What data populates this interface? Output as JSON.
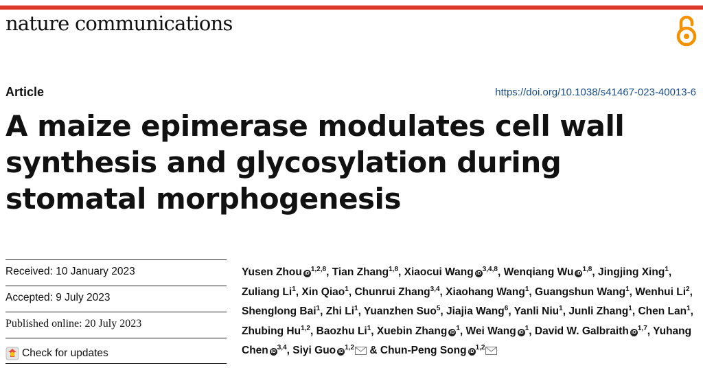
{
  "header": {
    "journal": "nature communications",
    "open_access_icon": "open-access-lock-icon",
    "accent_color": "#e0392b"
  },
  "article": {
    "type": "Article",
    "doi": "https://doi.org/10.1038/s41467-023-40013-6",
    "title": "A maize epimerase modulates cell wall synthesis and glycosylation during stomatal morphogenesis"
  },
  "dates": {
    "received": "Received: 10 January 2023",
    "accepted": "Accepted: 9 July 2023",
    "published": "Published online: 20 July 2023",
    "check_updates": "Check for updates"
  },
  "authors": [
    {
      "name": "Yusen Zhou",
      "orcid": true,
      "sup": "1,2,8",
      "sep": ", "
    },
    {
      "name": "Tian Zhang",
      "orcid": false,
      "sup": "1,8",
      "sep": ", "
    },
    {
      "name": "Xiaocui Wang",
      "orcid": true,
      "sup": "3,4,8",
      "sep": ", "
    },
    {
      "name": "Wenqiang Wu",
      "orcid": true,
      "sup": "1,8",
      "sep": ", "
    },
    {
      "name": "Jingjing Xing",
      "orcid": false,
      "sup": "1",
      "sep": ", "
    },
    {
      "name": "Zuliang Li",
      "orcid": false,
      "sup": "1",
      "sep": ", "
    },
    {
      "name": "Xin Qiao",
      "orcid": false,
      "sup": "1",
      "sep": ", "
    },
    {
      "name": "Chunrui Zhang",
      "orcid": false,
      "sup": "3,4",
      "sep": ", "
    },
    {
      "name": "Xiaohang Wang",
      "orcid": false,
      "sup": "1",
      "sep": ", "
    },
    {
      "name": "Guangshun Wang",
      "orcid": false,
      "sup": "1",
      "sep": ", "
    },
    {
      "name": "Wenhui Li",
      "orcid": false,
      "sup": "2",
      "sep": ", "
    },
    {
      "name": "Shenglong Bai",
      "orcid": false,
      "sup": "1",
      "sep": ", "
    },
    {
      "name": "Zhi Li",
      "orcid": false,
      "sup": "1",
      "sep": ", "
    },
    {
      "name": "Yuanzhen Suo",
      "orcid": false,
      "sup": "5",
      "sep": ", "
    },
    {
      "name": "Jiajia Wang",
      "orcid": false,
      "sup": "6",
      "sep": ", "
    },
    {
      "name": "Yanli Niu",
      "orcid": false,
      "sup": "1",
      "sep": ", "
    },
    {
      "name": "Junli Zhang",
      "orcid": false,
      "sup": "1",
      "sep": ", "
    },
    {
      "name": "Chen Lan",
      "orcid": false,
      "sup": "1",
      "sep": ", "
    },
    {
      "name": "Zhubing Hu",
      "orcid": false,
      "sup": "1,2",
      "sep": ", "
    },
    {
      "name": "Baozhu Li",
      "orcid": false,
      "sup": "1",
      "sep": ", "
    },
    {
      "name": "Xuebin Zhang",
      "orcid": true,
      "sup": "1",
      "sep": ", "
    },
    {
      "name": "Wei Wang",
      "orcid": true,
      "sup": "1",
      "sep": ", "
    },
    {
      "name": "David W. Galbraith",
      "orcid": true,
      "sup": "1,7",
      "sep": ", "
    },
    {
      "name": "Yuhang Chen",
      "orcid": true,
      "sup": "3,4",
      "sep": ", "
    },
    {
      "name": "Siyi Guo",
      "orcid": true,
      "sup": "1,2",
      "mail": true,
      "sep": " & "
    },
    {
      "name": "Chun-Peng Song",
      "orcid": true,
      "sup": "1,2",
      "mail": true,
      "sep": ""
    }
  ]
}
